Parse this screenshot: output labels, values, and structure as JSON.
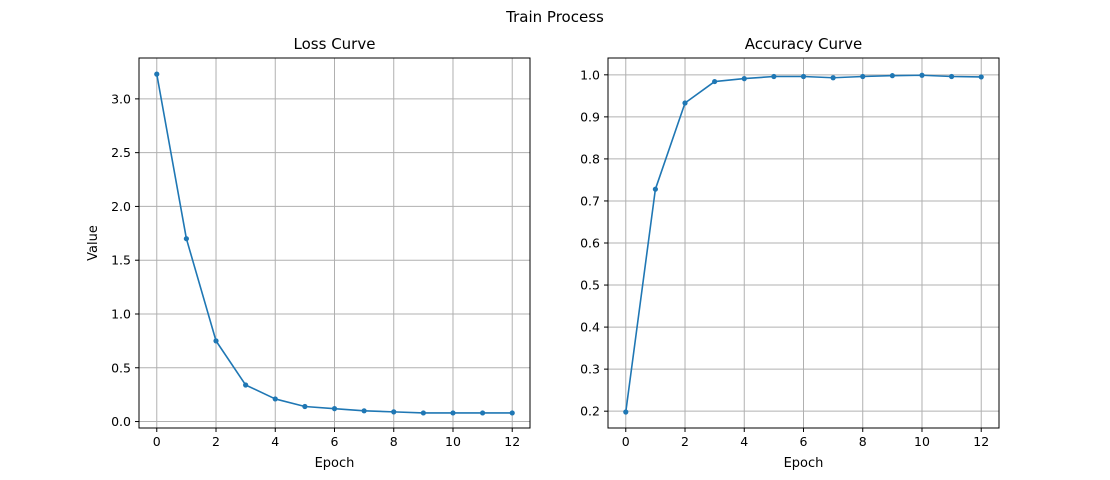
{
  "figure": {
    "suptitle": "Train Process"
  },
  "chart_data": [
    {
      "type": "line",
      "title": "Loss Curve",
      "xlabel": "Epoch",
      "ylabel": "Value",
      "xlim": [
        -0.6,
        12.6
      ],
      "ylim": [
        -0.06,
        3.38
      ],
      "xticks": [
        0,
        2,
        4,
        6,
        8,
        10,
        12
      ],
      "xtick_labels": [
        "0",
        "2",
        "4",
        "6",
        "8",
        "10",
        "12"
      ],
      "yticks": [
        0.0,
        0.5,
        1.0,
        1.5,
        2.0,
        2.5,
        3.0
      ],
      "ytick_labels": [
        "0.0",
        "0.5",
        "1.0",
        "1.5",
        "2.0",
        "2.5",
        "3.0"
      ],
      "grid": true,
      "color": "#1f77b4",
      "x": [
        0,
        1,
        2,
        3,
        4,
        5,
        6,
        7,
        8,
        9,
        10,
        11,
        12
      ],
      "y": [
        3.23,
        1.7,
        0.75,
        0.34,
        0.21,
        0.14,
        0.12,
        0.1,
        0.09,
        0.08,
        0.08,
        0.08,
        0.08
      ]
    },
    {
      "type": "line",
      "title": "Accuracy Curve",
      "xlabel": "Epoch",
      "ylabel": "",
      "xlim": [
        -0.6,
        12.6
      ],
      "ylim": [
        0.16,
        1.04
      ],
      "xticks": [
        0,
        2,
        4,
        6,
        8,
        10,
        12
      ],
      "xtick_labels": [
        "0",
        "2",
        "4",
        "6",
        "8",
        "10",
        "12"
      ],
      "yticks": [
        0.2,
        0.3,
        0.4,
        0.5,
        0.6,
        0.7,
        0.8,
        0.9,
        1.0
      ],
      "ytick_labels": [
        "0.2",
        "0.3",
        "0.4",
        "0.5",
        "0.6",
        "0.7",
        "0.8",
        "0.9",
        "1.0"
      ],
      "grid": true,
      "color": "#1f77b4",
      "x": [
        0,
        1,
        2,
        3,
        4,
        5,
        6,
        7,
        8,
        9,
        10,
        11,
        12
      ],
      "y": [
        0.198,
        0.728,
        0.933,
        0.984,
        0.991,
        0.996,
        0.996,
        0.993,
        0.996,
        0.998,
        0.999,
        0.996,
        0.995
      ]
    }
  ]
}
